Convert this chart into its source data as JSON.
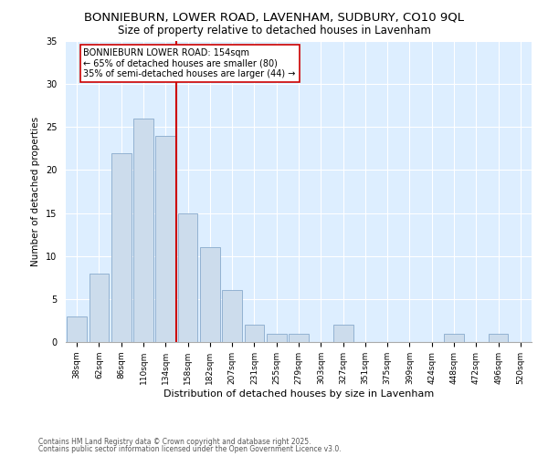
{
  "title1": "BONNIEBURN, LOWER ROAD, LAVENHAM, SUDBURY, CO10 9QL",
  "title2": "Size of property relative to detached houses in Lavenham",
  "xlabel": "Distribution of detached houses by size in Lavenham",
  "ylabel": "Number of detached properties",
  "categories": [
    "38sqm",
    "62sqm",
    "86sqm",
    "110sqm",
    "134sqm",
    "158sqm",
    "182sqm",
    "207sqm",
    "231sqm",
    "255sqm",
    "279sqm",
    "303sqm",
    "327sqm",
    "351sqm",
    "375sqm",
    "399sqm",
    "424sqm",
    "448sqm",
    "472sqm",
    "496sqm",
    "520sqm"
  ],
  "values": [
    3,
    8,
    22,
    26,
    24,
    15,
    11,
    6,
    2,
    1,
    1,
    0,
    2,
    0,
    0,
    0,
    0,
    1,
    0,
    1,
    0
  ],
  "bar_color": "#ccdcec",
  "bar_edge_color": "#88aacc",
  "vline_color": "#cc0000",
  "annotation_text": "BONNIEBURN LOWER ROAD: 154sqm\n← 65% of detached houses are smaller (80)\n35% of semi-detached houses are larger (44) →",
  "annotation_box_facecolor": "#ffffff",
  "annotation_box_edgecolor": "#cc0000",
  "ylim": [
    0,
    35
  ],
  "yticks": [
    0,
    5,
    10,
    15,
    20,
    25,
    30,
    35
  ],
  "plot_background": "#ddeeff",
  "footer1": "Contains HM Land Registry data © Crown copyright and database right 2025.",
  "footer2": "Contains public sector information licensed under the Open Government Licence v3.0.",
  "title1_fontsize": 9.5,
  "title2_fontsize": 8.5,
  "xlabel_fontsize": 8,
  "ylabel_fontsize": 7.5,
  "tick_fontsize": 6.5,
  "annotation_fontsize": 7,
  "footer_fontsize": 5.5,
  "vline_x_index": 4.5
}
